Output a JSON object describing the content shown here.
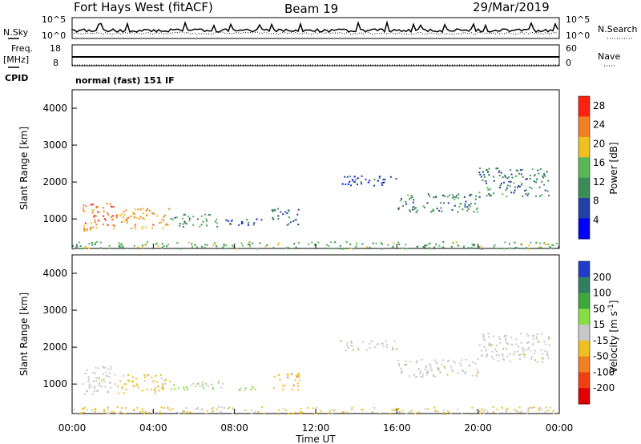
{
  "header": {
    "station": "Fort Hays West (fitACF)",
    "beam": "Beam 19",
    "date": "29/Mar/2019"
  },
  "noise_panel": {
    "left_label": "N.Sky",
    "right_label": "N.Search",
    "left_ticks": [
      "10^5",
      "10^0"
    ],
    "right_ticks": [
      "10^5",
      "10^0"
    ]
  },
  "freq_panel": {
    "left_label_1": "Freq.",
    "left_label_2": "[MHz]",
    "right_label": "Nave",
    "left_ticks": [
      "18",
      "8"
    ],
    "right_ticks": [
      "60",
      "0"
    ],
    "cpid_label": "CPID",
    "cpid_text": "normal (fast) 151 IF"
  },
  "x_axis": {
    "label": "Time UT",
    "ticks": [
      "00:00",
      "04:00",
      "08:00",
      "12:00",
      "16:00",
      "20:00",
      "00:00"
    ]
  },
  "chart_data": [
    {
      "type": "heatmap",
      "title": "",
      "xlabel": "Time UT",
      "ylabel": "Slant Range [km]",
      "xlim": [
        0,
        24
      ],
      "ylim": [
        200,
        4500
      ],
      "yticks": [
        "1000",
        "2000",
        "3000",
        "4000"
      ],
      "colorbar": {
        "label": "Power [dB]",
        "ticks": [
          "4",
          "8",
          "12",
          "16",
          "20",
          "24",
          "28"
        ],
        "colors": [
          "#0000ff",
          "#2040a8",
          "#3c8c5a",
          "#58b858",
          "#f0c020",
          "#f08020",
          "#ff2010"
        ],
        "range": [
          0,
          30
        ]
      },
      "regions": [
        {
          "t0": 0.5,
          "t1": 2.2,
          "r0": 700,
          "r1": 1500,
          "level": 24
        },
        {
          "t0": 2.2,
          "t1": 4.8,
          "r0": 750,
          "r1": 1300,
          "level": 22
        },
        {
          "t0": 4.8,
          "t1": 7.2,
          "r0": 800,
          "r1": 1150,
          "level": 12
        },
        {
          "t0": 7.2,
          "t1": 9.4,
          "r0": 850,
          "r1": 1050,
          "level": 7
        },
        {
          "t0": 9.8,
          "t1": 11.2,
          "r0": 850,
          "r1": 1300,
          "level": 8
        },
        {
          "t0": 13.2,
          "t1": 16.0,
          "r0": 1900,
          "r1": 2200,
          "level": 6
        },
        {
          "t0": 16.0,
          "t1": 20.0,
          "r0": 1200,
          "r1": 1700,
          "level": 10
        },
        {
          "t0": 20.0,
          "t1": 23.5,
          "r0": 1600,
          "r1": 2400,
          "level": 10
        },
        {
          "t0": 0.0,
          "t1": 24.0,
          "r0": 200,
          "r1": 400,
          "level": 14
        }
      ]
    },
    {
      "type": "heatmap",
      "title": "",
      "xlabel": "Time UT",
      "ylabel": "Slant Range [km]",
      "xlim": [
        0,
        24
      ],
      "ylim": [
        200,
        4500
      ],
      "yticks": [
        "1000",
        "2000",
        "3000",
        "4000"
      ],
      "colorbar": {
        "label": "Velocity [m s^-1]",
        "ticks": [
          "200",
          "100",
          "50",
          "15",
          "-15",
          "-50",
          "-100",
          "-200"
        ],
        "colors": [
          "#1e3cc8",
          "#2e8060",
          "#3ca83c",
          "#88dd44",
          "#c8c8c8",
          "#f0c020",
          "#f08020",
          "#f04010",
          "#e00000"
        ],
        "range": [
          -250,
          250
        ]
      },
      "regions": [
        {
          "t0": 0.5,
          "t1": 2.2,
          "r0": 700,
          "r1": 1500,
          "value": 0
        },
        {
          "t0": 2.2,
          "t1": 4.8,
          "r0": 750,
          "r1": 1300,
          "value": -40
        },
        {
          "t0": 4.8,
          "t1": 7.5,
          "r0": 850,
          "r1": 1100,
          "value": 30
        },
        {
          "t0": 7.5,
          "t1": 9.0,
          "r0": 850,
          "r1": 1000,
          "value": 40
        },
        {
          "t0": 9.8,
          "t1": 11.2,
          "r0": 850,
          "r1": 1300,
          "value": -60
        },
        {
          "t0": 13.2,
          "t1": 16.0,
          "r0": 1900,
          "r1": 2200,
          "value": 0
        },
        {
          "t0": 16.0,
          "t1": 20.0,
          "r0": 1200,
          "r1": 1700,
          "value": 0
        },
        {
          "t0": 20.0,
          "t1": 23.5,
          "r0": 1600,
          "r1": 2400,
          "value": 0
        },
        {
          "t0": 0.0,
          "t1": 24.0,
          "r0": 200,
          "r1": 400,
          "value": -30
        }
      ]
    }
  ]
}
